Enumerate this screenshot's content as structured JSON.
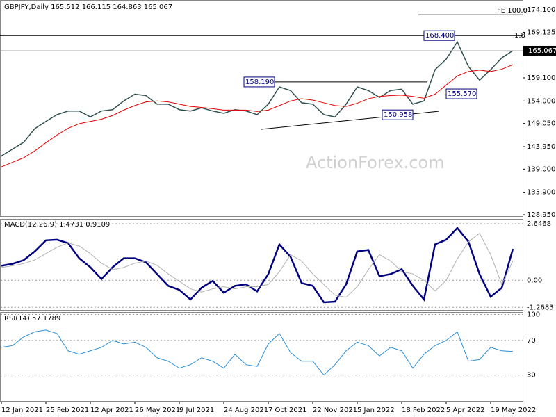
{
  "chart_data": [
    {
      "type": "line",
      "title": "GBPJPY,Daily  165.512 166.115 164.863 165.067",
      "watermark": "ActionForex.com",
      "categories": [
        "12 Jan 2021",
        null,
        null,
        null,
        "25 Feb 2021",
        null,
        null,
        null,
        "12 Apr 2021",
        null,
        null,
        null,
        "26 May 2021",
        null,
        null,
        null,
        "9 Jul 2021",
        null,
        null,
        null,
        "24 Aug 2021",
        null,
        null,
        null,
        "7 Oct 2021",
        null,
        null,
        null,
        "22 Nov 2021",
        null,
        null,
        null,
        "5 Jan 2022",
        null,
        null,
        null,
        "18 Feb 2022",
        null,
        null,
        null,
        "5 Apr 2022",
        null,
        null,
        null,
        "19 May 2022",
        null,
        null
      ],
      "series": [
        {
          "color": "#2f4f4f",
          "values": [
            141.9,
            143.4,
            144.9,
            147.9,
            149.5,
            151.0,
            151.8,
            151.8,
            150.5,
            151.8,
            152.1,
            154.0,
            155.5,
            155.2,
            153.3,
            153.3,
            152.1,
            151.8,
            152.5,
            151.8,
            151.3,
            152.1,
            151.8,
            151.0,
            153.3,
            157.1,
            156.3,
            153.6,
            153.3,
            151.0,
            150.5,
            153.3,
            157.1,
            156.3,
            154.8,
            156.3,
            156.6,
            153.3,
            154.0,
            160.9,
            163.2,
            167.0,
            161.6,
            158.6,
            160.9,
            163.5,
            165.1
          ]
        },
        {
          "color": "#e00000",
          "values": [
            139.5,
            140.5,
            141.5,
            143.0,
            144.8,
            146.5,
            148.0,
            149.0,
            149.5,
            150.0,
            150.8,
            152.0,
            153.0,
            153.8,
            154.0,
            153.8,
            153.3,
            152.8,
            152.6,
            152.3,
            152.0,
            152.0,
            152.0,
            151.7,
            152.0,
            153.0,
            154.0,
            154.5,
            154.2,
            153.6,
            153.0,
            152.8,
            153.5,
            154.5,
            155.0,
            155.2,
            155.3,
            155.0,
            154.6,
            155.5,
            157.5,
            159.5,
            160.5,
            160.8,
            160.5,
            161.0,
            162.0
          ]
        }
      ],
      "ylim": [
        128.65,
        176.08
      ],
      "yticks": [
        {
          "value": 174.1,
          "label": "174.100"
        },
        {
          "value": 169.125,
          "label": "169.125"
        },
        {
          "value": 159.1,
          "label": "159.100"
        },
        {
          "value": 154,
          "label": "154.000"
        },
        {
          "value": 149.05,
          "label": "149.050"
        },
        {
          "value": 143.95,
          "label": "143.950"
        },
        {
          "value": 139,
          "label": "139.000"
        },
        {
          "value": 133.9,
          "label": "133.900"
        },
        {
          "value": 128.95,
          "label": "128.950"
        }
      ],
      "current": {
        "value": 165.067,
        "label": "165.067"
      },
      "annotations": [
        {
          "value": 158.19,
          "label": "158.190"
        },
        {
          "value": 150.958,
          "label": "150.958"
        },
        {
          "value": 168.4,
          "label": "168.400"
        },
        {
          "value": 155.57,
          "label": "155.570"
        },
        {
          "value": 173.0,
          "label": "FE 100.0"
        },
        {
          "value": 168.4,
          "label": "1.8"
        }
      ]
    },
    {
      "type": "line",
      "title": "MACD(12,26,9) 1.4731 0.9109",
      "series": [
        {
          "color": "#000080",
          "values": [
            0.68,
            0.77,
            0.94,
            1.35,
            1.87,
            1.9,
            1.74,
            1.03,
            0.61,
            0.06,
            0.61,
            1.03,
            1.03,
            0.84,
            0.29,
            -0.26,
            -0.45,
            -0.9,
            -0.35,
            -0.03,
            -0.58,
            -0.26,
            -0.19,
            -0.52,
            0.29,
            1.68,
            1.1,
            -0.13,
            -0.26,
            -1.03,
            -1.0,
            -0.19,
            1.35,
            1.42,
            0.19,
            0.29,
            0.52,
            -0.26,
            -0.9,
            1.68,
            1.9,
            2.45,
            1.81,
            0.29,
            -0.77,
            -0.35,
            1.47
          ]
        },
        {
          "color": "#b0b0b0",
          "values": [
            0.6,
            0.68,
            0.78,
            0.95,
            1.25,
            1.55,
            1.75,
            1.6,
            1.25,
            0.8,
            0.5,
            0.6,
            0.8,
            0.9,
            0.7,
            0.3,
            -0.05,
            -0.4,
            -0.55,
            -0.4,
            -0.3,
            -0.4,
            -0.3,
            -0.3,
            -0.2,
            0.4,
            1.2,
            0.9,
            0.3,
            -0.2,
            -0.7,
            -0.8,
            -0.3,
            0.5,
            1.2,
            0.9,
            0.4,
            0.3,
            0.0,
            -0.5,
            0.0,
            1.0,
            1.8,
            2.2,
            1.2,
            -0.2,
            0.91
          ]
        }
      ],
      "ylim": [
        -1.39,
        2.84
      ],
      "yticks": [
        2.6468,
        {
          "value": 0,
          "label": "0.00"
        },
        -1.2683
      ]
    },
    {
      "type": "line",
      "title": "RSI(14) 57.1789",
      "series": [
        {
          "color": "#2a8fd6",
          "values": [
            62,
            64,
            74,
            80,
            82,
            78,
            58,
            54,
            58,
            62,
            70,
            66,
            68,
            62,
            50,
            46,
            38,
            42,
            50,
            46,
            38,
            54,
            42,
            40,
            66,
            78,
            56,
            46,
            46,
            30,
            42,
            58,
            68,
            64,
            52,
            62,
            58,
            38,
            54,
            64,
            70,
            80,
            46,
            48,
            62,
            58,
            57.18
          ]
        }
      ],
      "ylim": [
        0,
        102
      ],
      "yticks": [
        100,
        70,
        30
      ]
    }
  ]
}
